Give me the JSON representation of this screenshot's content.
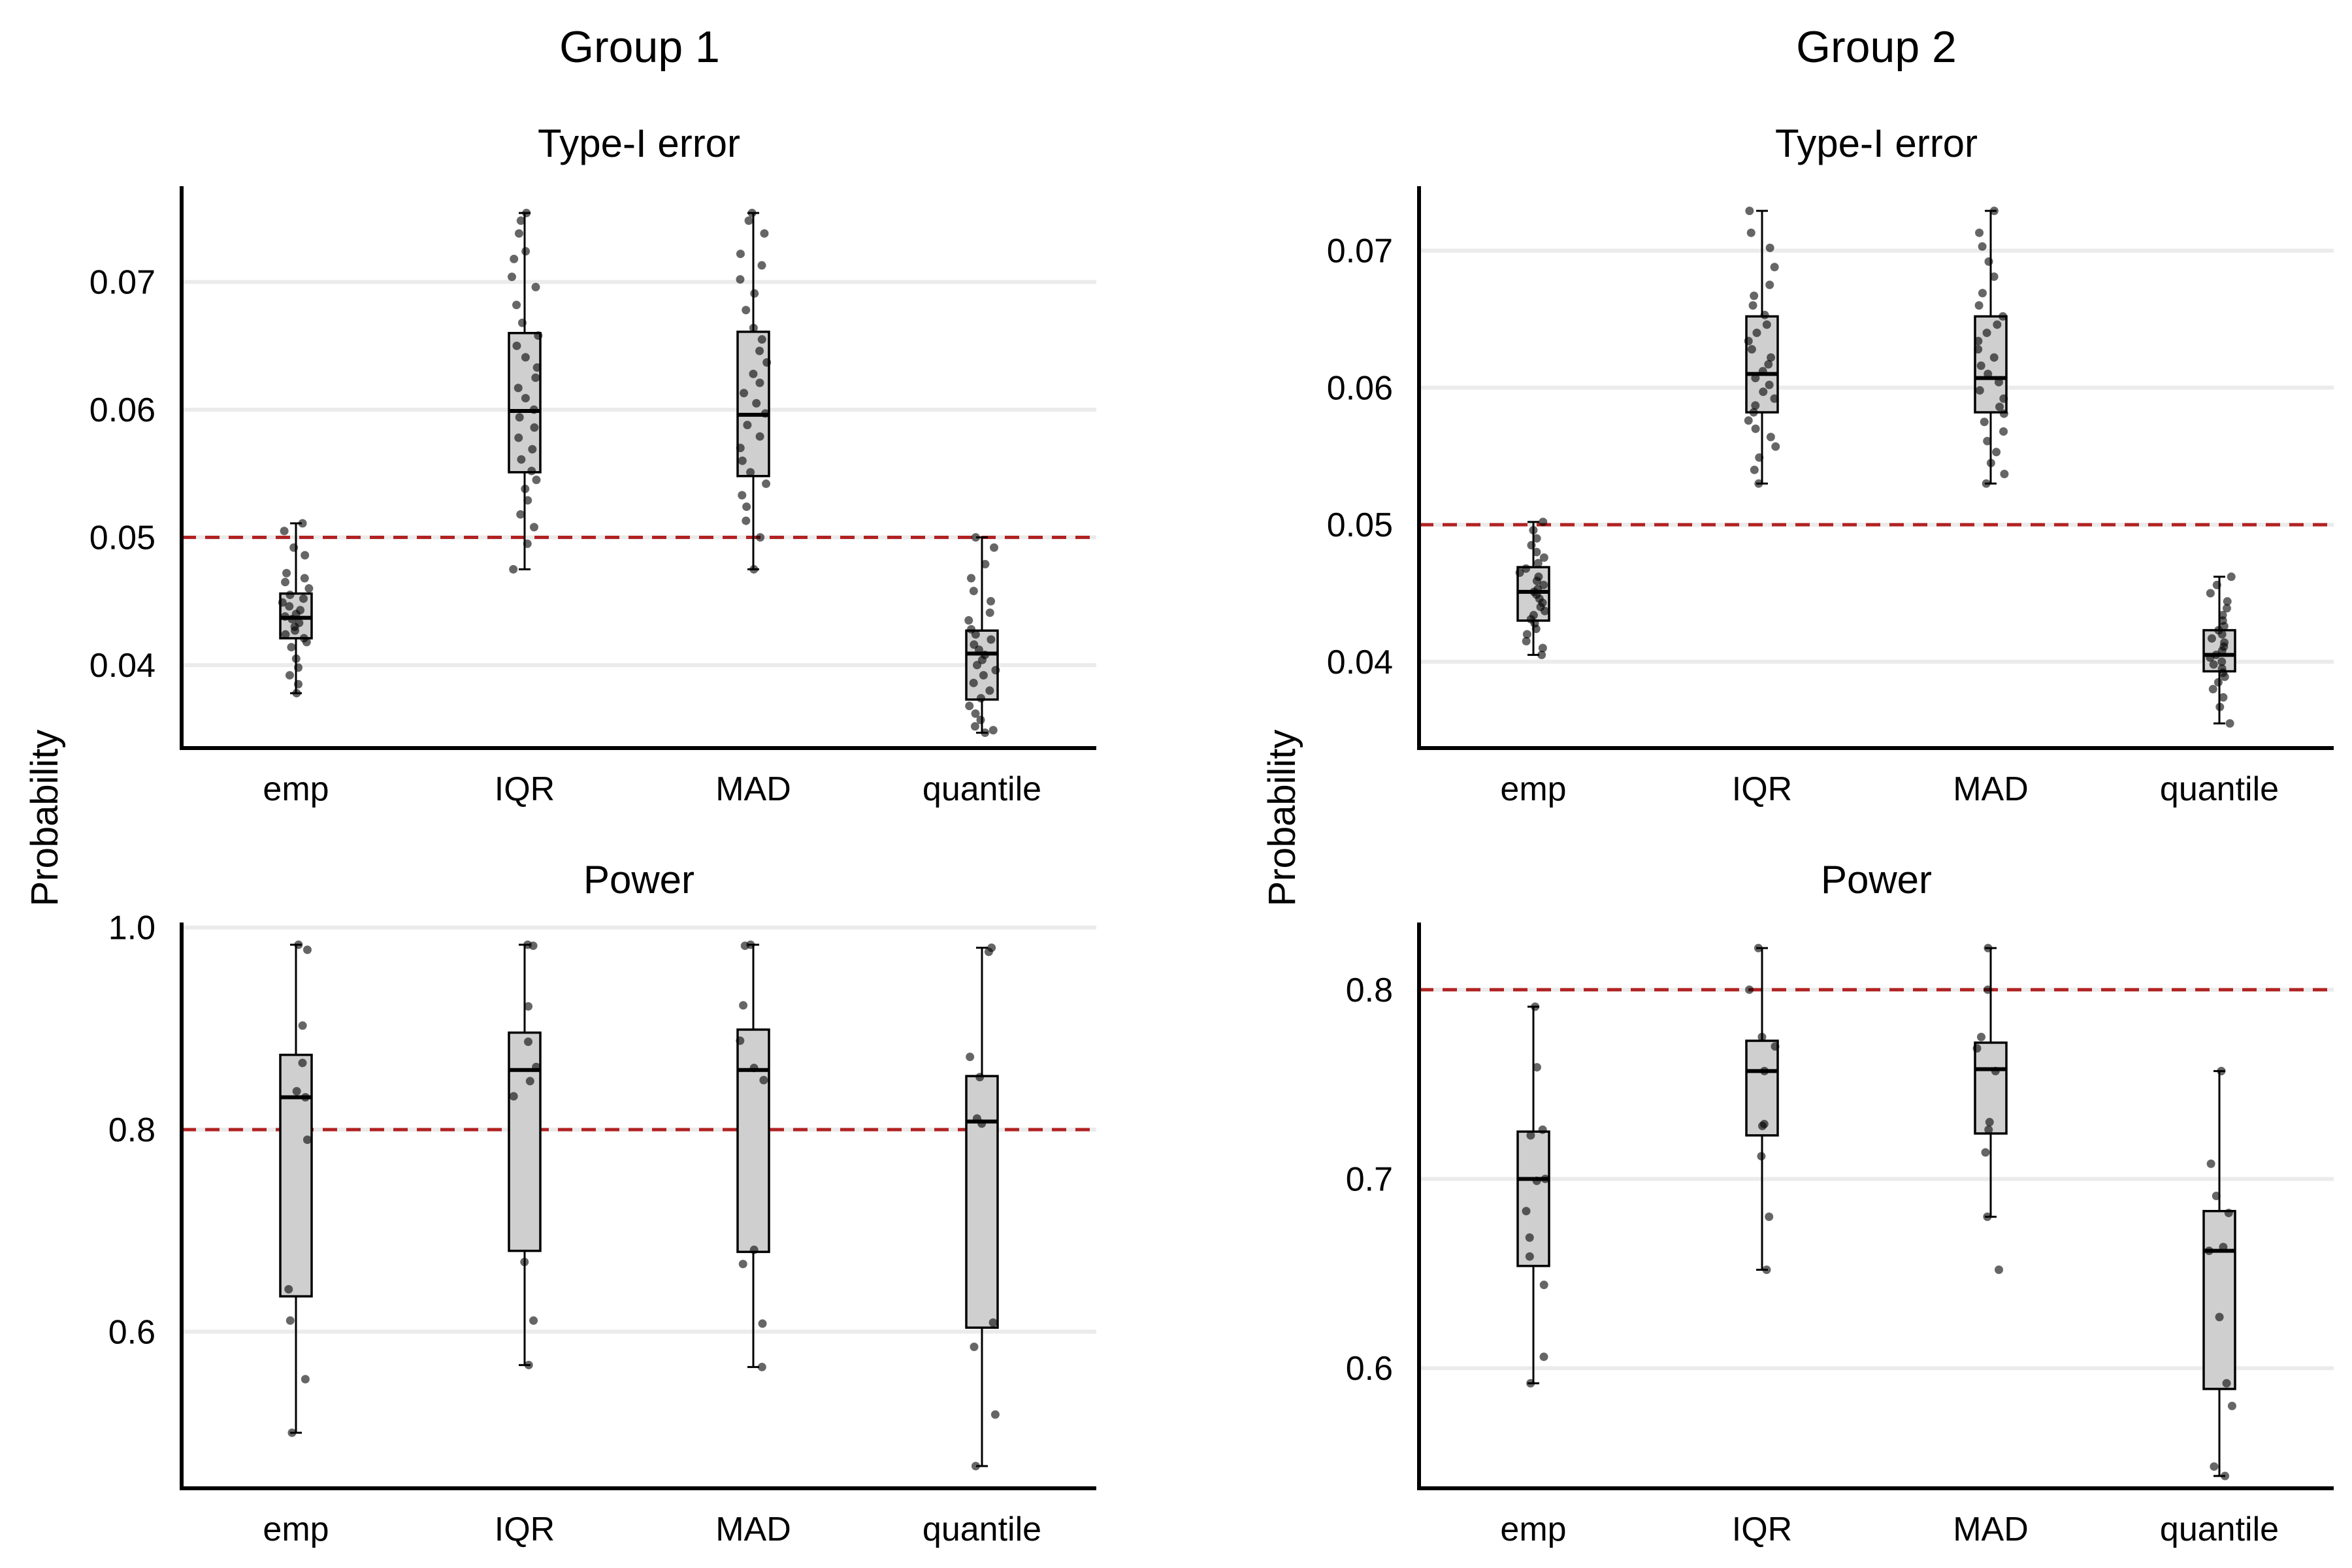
{
  "y_axis_label": "Probability",
  "chart_data": [
    {
      "type": "box",
      "group": "Group 1",
      "title": "Type-I error",
      "ylabel": "Probability",
      "categories": [
        "emp",
        "IQR",
        "MAD",
        "quantile"
      ],
      "ylim": [
        0.0335,
        0.0775
      ],
      "yticks": [
        0.04,
        0.05,
        0.06,
        0.07
      ],
      "ytick_labels": [
        "0.04",
        "0.05",
        "0.06",
        "0.07"
      ],
      "reference_line": 0.05,
      "boxes": [
        {
          "category": "emp",
          "whisker_low": 0.0378,
          "q1": 0.0421,
          "median": 0.0437,
          "q3": 0.0456,
          "whisker_high": 0.0511
        },
        {
          "category": "IQR",
          "whisker_low": 0.0475,
          "q1": 0.0551,
          "median": 0.0599,
          "q3": 0.066,
          "whisker_high": 0.0754
        },
        {
          "category": "MAD",
          "whisker_low": 0.0475,
          "q1": 0.0548,
          "median": 0.0596,
          "q3": 0.0661,
          "whisker_high": 0.0754
        },
        {
          "category": "quantile",
          "whisker_low": 0.0347,
          "q1": 0.0373,
          "median": 0.0409,
          "q3": 0.0427,
          "whisker_high": 0.05
        }
      ],
      "points": [
        [
          0.0511,
          0.0505,
          0.0492,
          0.0486,
          0.0472,
          0.0468,
          0.0465,
          0.046,
          0.0455,
          0.0452,
          0.0449,
          0.0446,
          0.0443,
          0.044,
          0.0438,
          0.0436,
          0.0433,
          0.043,
          0.0427,
          0.0424,
          0.0421,
          0.0418,
          0.0414,
          0.0405,
          0.0398,
          0.0392,
          0.0385,
          0.0378
        ],
        [
          0.0754,
          0.0748,
          0.0738,
          0.0724,
          0.0718,
          0.0704,
          0.0696,
          0.0682,
          0.0668,
          0.0658,
          0.065,
          0.0641,
          0.0633,
          0.0625,
          0.0617,
          0.0609,
          0.06,
          0.0594,
          0.0586,
          0.0578,
          0.0569,
          0.0561,
          0.0552,
          0.0545,
          0.0538,
          0.0529,
          0.0518,
          0.0508,
          0.0495,
          0.0475
        ],
        [
          0.0754,
          0.0748,
          0.0738,
          0.0722,
          0.0713,
          0.0702,
          0.0691,
          0.0678,
          0.0664,
          0.0655,
          0.0646,
          0.0637,
          0.0628,
          0.0621,
          0.0613,
          0.0605,
          0.0597,
          0.0588,
          0.0579,
          0.057,
          0.056,
          0.0551,
          0.0542,
          0.0533,
          0.0524,
          0.0513,
          0.05,
          0.0475
        ],
        [
          0.05,
          0.0492,
          0.0479,
          0.0468,
          0.0458,
          0.045,
          0.0441,
          0.0435,
          0.0428,
          0.0424,
          0.042,
          0.0416,
          0.0412,
          0.0408,
          0.0404,
          0.04,
          0.0396,
          0.0392,
          0.0386,
          0.038,
          0.0374,
          0.0368,
          0.0362,
          0.0357,
          0.0352,
          0.0349,
          0.0347
        ]
      ]
    },
    {
      "type": "box",
      "group": "Group 1",
      "title": "Power",
      "ylabel": "Probability",
      "categories": [
        "emp",
        "IQR",
        "MAD",
        "quantile"
      ],
      "ylim": [
        0.445,
        1.005
      ],
      "yticks": [
        0.6,
        0.8,
        1.0
      ],
      "ytick_labels": [
        "0.6",
        "0.8",
        "1.0"
      ],
      "reference_line": 0.8,
      "boxes": [
        {
          "category": "emp",
          "whisker_low": 0.5,
          "q1": 0.635,
          "median": 0.832,
          "q3": 0.874,
          "whisker_high": 0.983
        },
        {
          "category": "IQR",
          "whisker_low": 0.567,
          "q1": 0.68,
          "median": 0.859,
          "q3": 0.896,
          "whisker_high": 0.983
        },
        {
          "category": "MAD",
          "whisker_low": 0.565,
          "q1": 0.679,
          "median": 0.859,
          "q3": 0.899,
          "whisker_high": 0.983
        },
        {
          "category": "quantile",
          "whisker_low": 0.467,
          "q1": 0.604,
          "median": 0.808,
          "q3": 0.853,
          "whisker_high": 0.98
        }
      ],
      "points": [
        [
          0.983,
          0.978,
          0.903,
          0.866,
          0.838,
          0.832,
          0.79,
          0.642,
          0.611,
          0.553,
          0.5
        ],
        [
          0.983,
          0.982,
          0.922,
          0.887,
          0.862,
          0.848,
          0.833,
          0.669,
          0.611,
          0.567
        ],
        [
          0.983,
          0.982,
          0.923,
          0.888,
          0.861,
          0.849,
          0.681,
          0.667,
          0.608,
          0.565
        ],
        [
          0.98,
          0.976,
          0.872,
          0.852,
          0.811,
          0.806,
          0.609,
          0.585,
          0.518,
          0.467
        ]
      ]
    },
    {
      "type": "box",
      "group": "Group 2",
      "title": "Type-I error",
      "ylabel": "Probability",
      "categories": [
        "emp",
        "IQR",
        "MAD",
        "quantile"
      ],
      "ylim": [
        0.0337,
        0.0747
      ],
      "yticks": [
        0.04,
        0.05,
        0.06,
        0.07
      ],
      "ytick_labels": [
        "0.04",
        "0.05",
        "0.06",
        "0.07"
      ],
      "reference_line": 0.05,
      "boxes": [
        {
          "category": "emp",
          "whisker_low": 0.0405,
          "q1": 0.043,
          "median": 0.0451,
          "q3": 0.0469,
          "whisker_high": 0.0502
        },
        {
          "category": "IQR",
          "whisker_low": 0.053,
          "q1": 0.0582,
          "median": 0.061,
          "q3": 0.0652,
          "whisker_high": 0.0729
        },
        {
          "category": "MAD",
          "whisker_low": 0.053,
          "q1": 0.0582,
          "median": 0.0607,
          "q3": 0.0652,
          "whisker_high": 0.0729
        },
        {
          "category": "quantile",
          "whisker_low": 0.0355,
          "q1": 0.0393,
          "median": 0.0405,
          "q3": 0.0423,
          "whisker_high": 0.0462
        }
      ],
      "points": [
        [
          0.0502,
          0.0496,
          0.049,
          0.0485,
          0.048,
          0.0476,
          0.0472,
          0.0468,
          0.0465,
          0.0462,
          0.0459,
          0.0456,
          0.0453,
          0.0451,
          0.0449,
          0.0446,
          0.0443,
          0.044,
          0.0437,
          0.0434,
          0.0431,
          0.0428,
          0.0424,
          0.042,
          0.0415,
          0.041,
          0.0405
        ],
        [
          0.0729,
          0.0713,
          0.0702,
          0.0688,
          0.0675,
          0.0667,
          0.066,
          0.0653,
          0.0646,
          0.064,
          0.0634,
          0.0628,
          0.0622,
          0.0617,
          0.0612,
          0.0607,
          0.0602,
          0.0597,
          0.0592,
          0.0587,
          0.0582,
          0.0576,
          0.057,
          0.0564,
          0.0557,
          0.0549,
          0.054,
          0.053
        ],
        [
          0.0729,
          0.0713,
          0.0703,
          0.0692,
          0.0681,
          0.0669,
          0.066,
          0.0652,
          0.0646,
          0.064,
          0.0634,
          0.0628,
          0.0622,
          0.0616,
          0.061,
          0.0604,
          0.0598,
          0.0592,
          0.0586,
          0.0581,
          0.0575,
          0.0568,
          0.0561,
          0.0553,
          0.0545,
          0.0537,
          0.053
        ],
        [
          0.0462,
          0.0456,
          0.045,
          0.0444,
          0.0439,
          0.0434,
          0.043,
          0.0426,
          0.0423,
          0.042,
          0.0417,
          0.0414,
          0.0411,
          0.0408,
          0.0405,
          0.0403,
          0.04,
          0.0398,
          0.0395,
          0.0392,
          0.0389,
          0.0385,
          0.038,
          0.0374,
          0.0367,
          0.0355
        ]
      ]
    },
    {
      "type": "box",
      "group": "Group 2",
      "title": "Power",
      "ylabel": "Probability",
      "categories": [
        "emp",
        "IQR",
        "MAD",
        "quantile"
      ],
      "ylim": [
        0.5365,
        0.8355
      ],
      "yticks": [
        0.6,
        0.7,
        0.8
      ],
      "ytick_labels": [
        "0.6",
        "0.7",
        "0.8"
      ],
      "reference_line": 0.8,
      "boxes": [
        {
          "category": "emp",
          "whisker_low": 0.592,
          "q1": 0.654,
          "median": 0.7,
          "q3": 0.725,
          "whisker_high": 0.791
        },
        {
          "category": "IQR",
          "whisker_low": 0.652,
          "q1": 0.723,
          "median": 0.757,
          "q3": 0.773,
          "whisker_high": 0.822
        },
        {
          "category": "MAD",
          "whisker_low": 0.68,
          "q1": 0.724,
          "median": 0.758,
          "q3": 0.772,
          "whisker_high": 0.822
        },
        {
          "category": "quantile",
          "whisker_low": 0.543,
          "q1": 0.589,
          "median": 0.662,
          "q3": 0.683,
          "whisker_high": 0.757
        }
      ],
      "points": [
        [
          0.791,
          0.759,
          0.726,
          0.723,
          0.7,
          0.699,
          0.683,
          0.669,
          0.659,
          0.644,
          0.606,
          0.592
        ],
        [
          0.822,
          0.8,
          0.775,
          0.77,
          0.757,
          0.729,
          0.728,
          0.712,
          0.68,
          0.652
        ],
        [
          0.822,
          0.8,
          0.775,
          0.769,
          0.757,
          0.73,
          0.726,
          0.714,
          0.68,
          0.652
        ],
        [
          0.757,
          0.708,
          0.691,
          0.682,
          0.664,
          0.662,
          0.627,
          0.592,
          0.58,
          0.548,
          0.543
        ]
      ]
    }
  ]
}
